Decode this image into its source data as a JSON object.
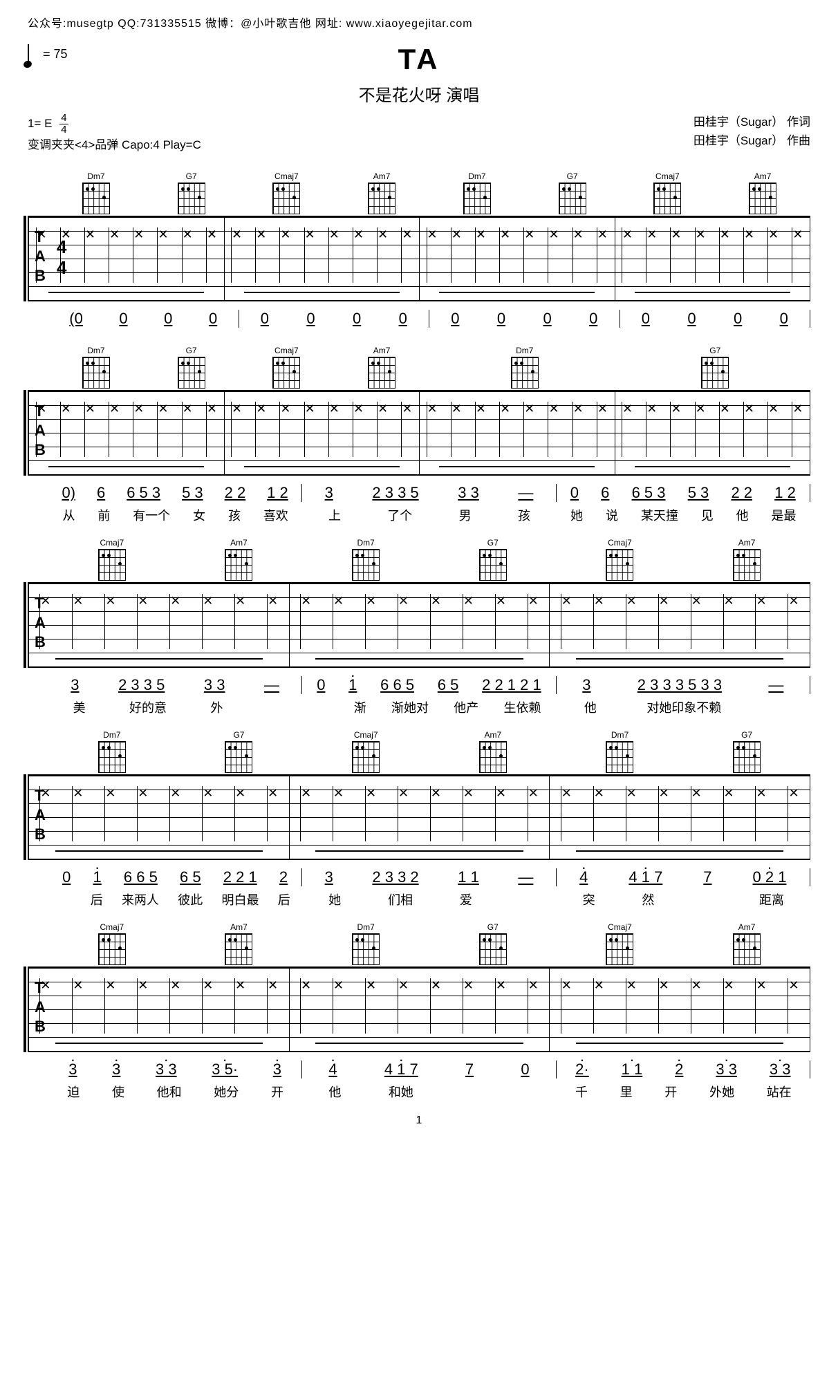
{
  "header": {
    "text": "公众号:musegtp  QQ:731335515  微博：@小叶歌吉他  网址: www.xiaoyegejitar.com"
  },
  "tempo": "= 75",
  "title": "TA",
  "subtitle": "不是花火呀  演唱",
  "meta": {
    "key": "1= E",
    "time_sig_top": "4",
    "time_sig_bottom": "4",
    "capo_line": "变调夹夹<4>品弹 Capo:4 Play=C",
    "lyricist": "田桂宇（Sugar）  作词",
    "composer": "田桂宇（Sugar）  作曲"
  },
  "chords": {
    "Dm7": "Dm7",
    "G7": "G7",
    "Cmaj7": "Cmaj7",
    "Am7": "Am7"
  },
  "systems": [
    {
      "chords": [
        [
          "Dm7",
          "G7"
        ],
        [
          "Cmaj7",
          "Am7"
        ],
        [
          "Dm7",
          "G7"
        ],
        [
          "Cmaj7",
          "Am7"
        ]
      ],
      "numbers": [
        [
          "(0",
          "0",
          "0",
          "0"
        ],
        [
          "0",
          "0",
          "0",
          "0"
        ],
        [
          "0",
          "0",
          "0",
          "0"
        ],
        [
          "0",
          "0",
          "0",
          "0"
        ]
      ],
      "lyrics": [
        [
          ""
        ],
        [
          ""
        ],
        [
          ""
        ],
        [
          ""
        ]
      ]
    },
    {
      "chords": [
        [
          "Dm7",
          "G7"
        ],
        [
          "Cmaj7",
          "Am7"
        ],
        [
          "Dm7"
        ],
        [
          "G7"
        ]
      ],
      "numbers": [
        [
          "0)",
          "6",
          "6 5 3",
          "5 3",
          "2 2",
          "1 2"
        ],
        [
          "3",
          "2 3 3 5",
          "3 3",
          "—"
        ],
        [
          "0",
          "6",
          "6 5 3",
          "5 3",
          "2 2",
          "1 2"
        ]
      ],
      "lyrics": [
        [
          "从",
          "前",
          "有一个",
          "女",
          "孩",
          "喜欢"
        ],
        [
          "上",
          "了个",
          "男",
          "孩"
        ],
        [
          "她",
          "说",
          "某天撞",
          "见",
          "他",
          "是最"
        ]
      ]
    },
    {
      "chords": [
        [
          "Cmaj7",
          "Am7"
        ],
        [
          "Dm7",
          "G7"
        ],
        [
          "Cmaj7",
          "Am7"
        ]
      ],
      "numbers": [
        [
          "3",
          "2 3 3 5",
          "3 3",
          "—"
        ],
        [
          "0",
          "1̇",
          "6 6 5",
          "6 5",
          "2 2 1 2 1"
        ],
        [
          "3",
          "2 3 3 3 5 3 3",
          "—"
        ]
      ],
      "lyrics": [
        [
          "美",
          "好的意",
          "外",
          ""
        ],
        [
          "",
          "渐",
          "渐她对",
          "他产",
          "生依赖"
        ],
        [
          "他",
          "对她印象不赖",
          ""
        ]
      ]
    },
    {
      "chords": [
        [
          "Dm7",
          "G7"
        ],
        [
          "Cmaj7",
          "Am7"
        ],
        [
          "Dm7",
          "G7"
        ]
      ],
      "numbers": [
        [
          "0",
          "1̇",
          "6 6 5",
          "6 5",
          "2 2 1",
          "2"
        ],
        [
          "3",
          "2 3 3 2",
          "1 1",
          "—"
        ],
        [
          "4̇",
          "4̇ 1̇ 7",
          "7",
          "0 2̇ 1̇"
        ]
      ],
      "lyrics": [
        [
          "",
          "后",
          "来两人",
          "彼此",
          "明白最",
          "后"
        ],
        [
          "她",
          "们相",
          "爱",
          ""
        ],
        [
          "突",
          "然",
          "",
          "距离"
        ]
      ]
    },
    {
      "chords": [
        [
          "Cmaj7",
          "Am7"
        ],
        [
          "Dm7",
          "G7"
        ],
        [
          "Cmaj7",
          "Am7"
        ]
      ],
      "numbers": [
        [
          "3̇",
          "3̇",
          "3̇ 3̇",
          "3̇ 5̇·",
          "3̇"
        ],
        [
          "4̇",
          "4̇ 1̇ 7",
          "7",
          "0"
        ],
        [
          "2̇·",
          "1̇ 1̇",
          "2̇",
          "3̇ 3̇",
          "3̇ 3̇"
        ]
      ],
      "lyrics": [
        [
          "迫",
          "使",
          "他和",
          "她分",
          "开"
        ],
        [
          "他",
          "和她",
          "",
          ""
        ],
        [
          "千",
          "里",
          "开",
          "外她",
          "站在"
        ]
      ]
    }
  ],
  "page_number": "1",
  "colors": {
    "text": "#000000",
    "background": "#ffffff"
  }
}
